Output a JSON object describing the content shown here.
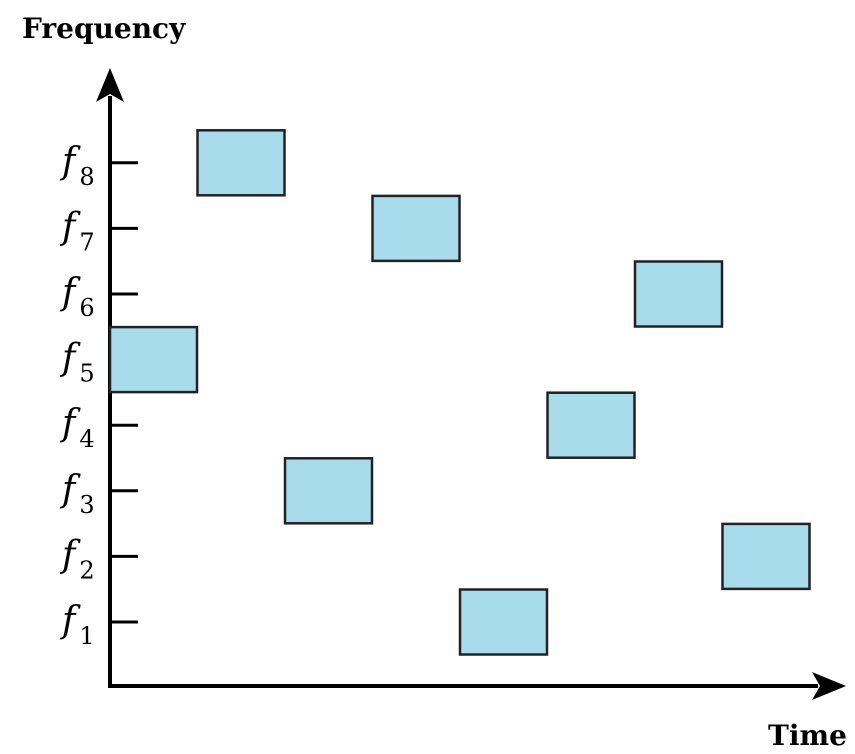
{
  "diagram": {
    "y_axis_title": "Frequency",
    "x_axis_title": "Time",
    "colors": {
      "box_fill": "#a8dbec",
      "box_stroke": "#222222",
      "axis": "#000000"
    },
    "frequency_ticks": [
      {
        "main": "f",
        "sub": "1"
      },
      {
        "main": "f",
        "sub": "2"
      },
      {
        "main": "f",
        "sub": "3"
      },
      {
        "main": "f",
        "sub": "4"
      },
      {
        "main": "f",
        "sub": "5"
      },
      {
        "main": "f",
        "sub": "6"
      },
      {
        "main": "f",
        "sub": "7"
      },
      {
        "main": "f",
        "sub": "8"
      }
    ],
    "hops": [
      {
        "time_slot": 1,
        "frequency": 5
      },
      {
        "time_slot": 2,
        "frequency": 8
      },
      {
        "time_slot": 3,
        "frequency": 3
      },
      {
        "time_slot": 4,
        "frequency": 7
      },
      {
        "time_slot": 5,
        "frequency": 1
      },
      {
        "time_slot": 6,
        "frequency": 4
      },
      {
        "time_slot": 7,
        "frequency": 6
      },
      {
        "time_slot": 8,
        "frequency": 2
      }
    ]
  }
}
